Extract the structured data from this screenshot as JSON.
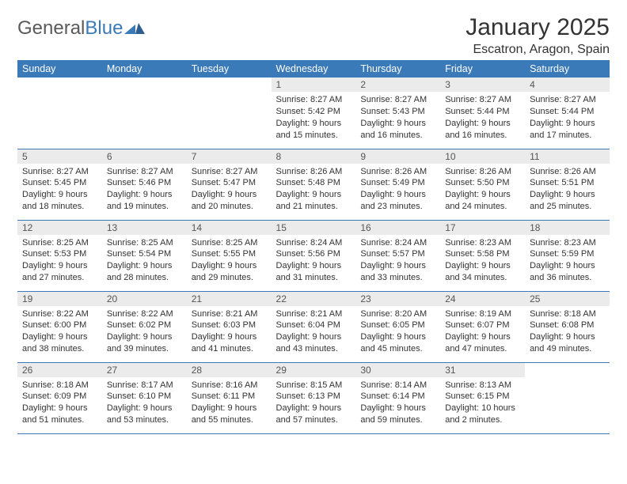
{
  "logo": {
    "text_gray": "General",
    "text_blue": "Blue"
  },
  "title": "January 2025",
  "location": "Escatron, Aragon, Spain",
  "colors": {
    "header_bg": "#3b7ab8",
    "header_text": "#ffffff",
    "daynum_bg": "#ebebeb",
    "daynum_text": "#555555",
    "text": "#333333",
    "rule": "#3b7ab8",
    "logo_gray": "#5a5a5a",
    "logo_blue": "#3b7ab8"
  },
  "weekdays": [
    "Sunday",
    "Monday",
    "Tuesday",
    "Wednesday",
    "Thursday",
    "Friday",
    "Saturday"
  ],
  "weeks": [
    [
      {
        "empty": true
      },
      {
        "empty": true
      },
      {
        "empty": true
      },
      {
        "n": "1",
        "sr": "Sunrise: 8:27 AM",
        "ss": "Sunset: 5:42 PM",
        "d1": "Daylight: 9 hours",
        "d2": "and 15 minutes."
      },
      {
        "n": "2",
        "sr": "Sunrise: 8:27 AM",
        "ss": "Sunset: 5:43 PM",
        "d1": "Daylight: 9 hours",
        "d2": "and 16 minutes."
      },
      {
        "n": "3",
        "sr": "Sunrise: 8:27 AM",
        "ss": "Sunset: 5:44 PM",
        "d1": "Daylight: 9 hours",
        "d2": "and 16 minutes."
      },
      {
        "n": "4",
        "sr": "Sunrise: 8:27 AM",
        "ss": "Sunset: 5:44 PM",
        "d1": "Daylight: 9 hours",
        "d2": "and 17 minutes."
      }
    ],
    [
      {
        "n": "5",
        "sr": "Sunrise: 8:27 AM",
        "ss": "Sunset: 5:45 PM",
        "d1": "Daylight: 9 hours",
        "d2": "and 18 minutes."
      },
      {
        "n": "6",
        "sr": "Sunrise: 8:27 AM",
        "ss": "Sunset: 5:46 PM",
        "d1": "Daylight: 9 hours",
        "d2": "and 19 minutes."
      },
      {
        "n": "7",
        "sr": "Sunrise: 8:27 AM",
        "ss": "Sunset: 5:47 PM",
        "d1": "Daylight: 9 hours",
        "d2": "and 20 minutes."
      },
      {
        "n": "8",
        "sr": "Sunrise: 8:26 AM",
        "ss": "Sunset: 5:48 PM",
        "d1": "Daylight: 9 hours",
        "d2": "and 21 minutes."
      },
      {
        "n": "9",
        "sr": "Sunrise: 8:26 AM",
        "ss": "Sunset: 5:49 PM",
        "d1": "Daylight: 9 hours",
        "d2": "and 23 minutes."
      },
      {
        "n": "10",
        "sr": "Sunrise: 8:26 AM",
        "ss": "Sunset: 5:50 PM",
        "d1": "Daylight: 9 hours",
        "d2": "and 24 minutes."
      },
      {
        "n": "11",
        "sr": "Sunrise: 8:26 AM",
        "ss": "Sunset: 5:51 PM",
        "d1": "Daylight: 9 hours",
        "d2": "and 25 minutes."
      }
    ],
    [
      {
        "n": "12",
        "sr": "Sunrise: 8:25 AM",
        "ss": "Sunset: 5:53 PM",
        "d1": "Daylight: 9 hours",
        "d2": "and 27 minutes."
      },
      {
        "n": "13",
        "sr": "Sunrise: 8:25 AM",
        "ss": "Sunset: 5:54 PM",
        "d1": "Daylight: 9 hours",
        "d2": "and 28 minutes."
      },
      {
        "n": "14",
        "sr": "Sunrise: 8:25 AM",
        "ss": "Sunset: 5:55 PM",
        "d1": "Daylight: 9 hours",
        "d2": "and 29 minutes."
      },
      {
        "n": "15",
        "sr": "Sunrise: 8:24 AM",
        "ss": "Sunset: 5:56 PM",
        "d1": "Daylight: 9 hours",
        "d2": "and 31 minutes."
      },
      {
        "n": "16",
        "sr": "Sunrise: 8:24 AM",
        "ss": "Sunset: 5:57 PM",
        "d1": "Daylight: 9 hours",
        "d2": "and 33 minutes."
      },
      {
        "n": "17",
        "sr": "Sunrise: 8:23 AM",
        "ss": "Sunset: 5:58 PM",
        "d1": "Daylight: 9 hours",
        "d2": "and 34 minutes."
      },
      {
        "n": "18",
        "sr": "Sunrise: 8:23 AM",
        "ss": "Sunset: 5:59 PM",
        "d1": "Daylight: 9 hours",
        "d2": "and 36 minutes."
      }
    ],
    [
      {
        "n": "19",
        "sr": "Sunrise: 8:22 AM",
        "ss": "Sunset: 6:00 PM",
        "d1": "Daylight: 9 hours",
        "d2": "and 38 minutes."
      },
      {
        "n": "20",
        "sr": "Sunrise: 8:22 AM",
        "ss": "Sunset: 6:02 PM",
        "d1": "Daylight: 9 hours",
        "d2": "and 39 minutes."
      },
      {
        "n": "21",
        "sr": "Sunrise: 8:21 AM",
        "ss": "Sunset: 6:03 PM",
        "d1": "Daylight: 9 hours",
        "d2": "and 41 minutes."
      },
      {
        "n": "22",
        "sr": "Sunrise: 8:21 AM",
        "ss": "Sunset: 6:04 PM",
        "d1": "Daylight: 9 hours",
        "d2": "and 43 minutes."
      },
      {
        "n": "23",
        "sr": "Sunrise: 8:20 AM",
        "ss": "Sunset: 6:05 PM",
        "d1": "Daylight: 9 hours",
        "d2": "and 45 minutes."
      },
      {
        "n": "24",
        "sr": "Sunrise: 8:19 AM",
        "ss": "Sunset: 6:07 PM",
        "d1": "Daylight: 9 hours",
        "d2": "and 47 minutes."
      },
      {
        "n": "25",
        "sr": "Sunrise: 8:18 AM",
        "ss": "Sunset: 6:08 PM",
        "d1": "Daylight: 9 hours",
        "d2": "and 49 minutes."
      }
    ],
    [
      {
        "n": "26",
        "sr": "Sunrise: 8:18 AM",
        "ss": "Sunset: 6:09 PM",
        "d1": "Daylight: 9 hours",
        "d2": "and 51 minutes."
      },
      {
        "n": "27",
        "sr": "Sunrise: 8:17 AM",
        "ss": "Sunset: 6:10 PM",
        "d1": "Daylight: 9 hours",
        "d2": "and 53 minutes."
      },
      {
        "n": "28",
        "sr": "Sunrise: 8:16 AM",
        "ss": "Sunset: 6:11 PM",
        "d1": "Daylight: 9 hours",
        "d2": "and 55 minutes."
      },
      {
        "n": "29",
        "sr": "Sunrise: 8:15 AM",
        "ss": "Sunset: 6:13 PM",
        "d1": "Daylight: 9 hours",
        "d2": "and 57 minutes."
      },
      {
        "n": "30",
        "sr": "Sunrise: 8:14 AM",
        "ss": "Sunset: 6:14 PM",
        "d1": "Daylight: 9 hours",
        "d2": "and 59 minutes."
      },
      {
        "n": "31",
        "sr": "Sunrise: 8:13 AM",
        "ss": "Sunset: 6:15 PM",
        "d1": "Daylight: 10 hours",
        "d2": "and 2 minutes."
      },
      {
        "empty": true
      }
    ]
  ]
}
